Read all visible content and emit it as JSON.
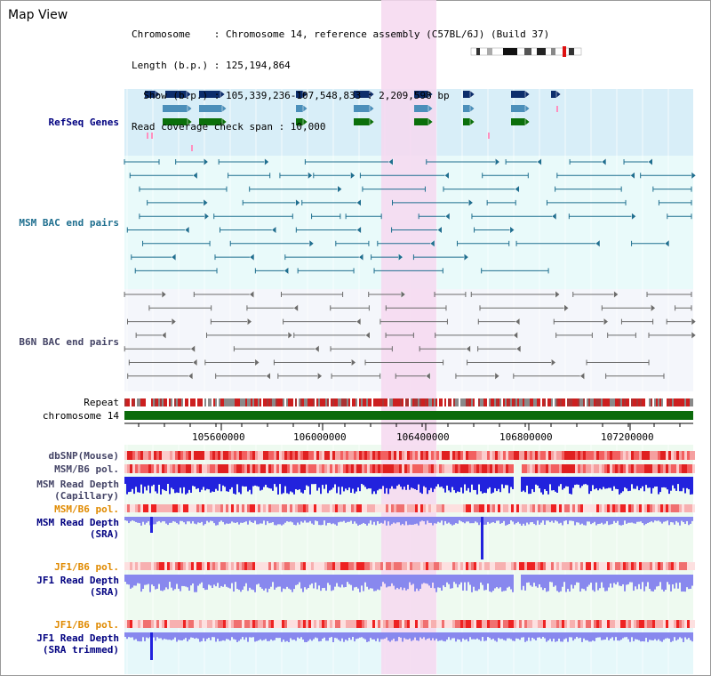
{
  "header": {
    "title": "Map View",
    "info_lines": [
      "Chromosome    : Chromosome 14, reference assembly (C57BL/6J) (Build 37)",
      "Length (b.p.) : 125,194,864",
      "  Show (b.p.) : 105,339,236-107,548,833 : 2,209,598 bp",
      "Read coverage check span : 10,000"
    ]
  },
  "tracks": {
    "refseq": "RefSeq Genes",
    "msm_bac": "MSM BAC end pairs",
    "b6n_bac": "B6N BAC end pairs",
    "repeat": "Repeat",
    "chromosome": "chromosome 14",
    "dbsnp": "dbSNP(Mouse)",
    "msm_b6_pol_1": "MSM/B6 pol.",
    "msm_depth_cap": "MSM Read Depth\n(Capillary)",
    "msm_b6_pol_2": "MSM/B6 pol.",
    "msm_depth_sra": "MSM Read Depth\n(SRA)",
    "jf1_b6_pol_1": "JF1/B6 pol.",
    "jf1_depth_sra": "JF1 Read Depth\n(SRA)",
    "jf1_b6_pol_2": "JF1/B6 pol.",
    "jf1_depth_trim": "JF1 Read Depth\n(SRA trimmed)"
  },
  "axis": {
    "ticks": [
      "105600000",
      "106000000",
      "106400000",
      "106800000",
      "107200000"
    ]
  },
  "colors": {
    "highlight": "#f6d8f0",
    "refseq_bg": "#d8eef8",
    "lane_bg": "#e8fbfb",
    "gene_navy": "#0c2d6b",
    "gene_teal": "#4b8fba",
    "gene_green": "#0b6f0b",
    "bac_teal": "#1f6f8f",
    "bac_gray": "#6b6b6b",
    "repeat_red": "#cc1f1f",
    "chromosome_green": "#0b6b0b",
    "depth_blue": "#2222dd",
    "depth_light": "#8888ee",
    "label_navy": "#000080",
    "label_teal": "#1f6f8f",
    "label_orange": "#e08a00",
    "label_slate": "#444466"
  }
}
